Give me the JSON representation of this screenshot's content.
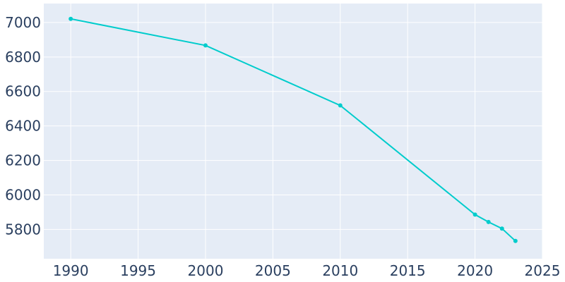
{
  "chart_data": {
    "type": "line",
    "title": "",
    "xlabel": "",
    "ylabel": "",
    "x": [
      1990,
      2000,
      2010,
      2020,
      2021,
      2022,
      2023
    ],
    "series": [
      {
        "values": [
          7021,
          6867,
          6519,
          5886,
          5843,
          5805,
          5733
        ]
      }
    ],
    "xlim": [
      1988,
      2025
    ],
    "ylim": [
      5630,
      7110
    ],
    "x_ticks": [
      1990,
      1995,
      2000,
      2005,
      2010,
      2015,
      2020,
      2025
    ],
    "y_ticks": [
      5800,
      6000,
      6200,
      6400,
      6600,
      6800,
      7000
    ],
    "x_tick_labels": [
      "1990",
      "1995",
      "2000",
      "2005",
      "2010",
      "2015",
      "2020",
      "2025"
    ],
    "y_tick_labels": [
      "5800",
      "6000",
      "6200",
      "6400",
      "6600",
      "6800",
      "7000"
    ],
    "grid": true,
    "legend": "none",
    "colors": {
      "line": "#00cccc",
      "plot_bg": "#e5ecf6",
      "grid": "#ffffff",
      "text": "#2a3f5f"
    }
  }
}
